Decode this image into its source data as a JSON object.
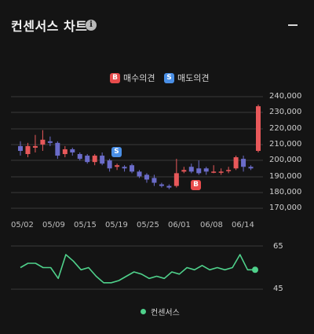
{
  "header": {
    "title": "컨센서스 차트",
    "info_icon": "info-icon",
    "collapse_icon": "minus-icon"
  },
  "legend": {
    "buy": {
      "badge": "B",
      "label": "매수의견"
    },
    "sell": {
      "badge": "S",
      "label": "매도의견"
    }
  },
  "colors": {
    "up": "#e8585a",
    "down": "#6b6cc9",
    "consensus": "#4fd18b",
    "buy": "#e84c4c",
    "sell": "#4a8fe6"
  },
  "price_axis": {
    "ticks": [
      "240,000",
      "230,000",
      "220,000",
      "210,000",
      "200,000",
      "190,000",
      "180,000",
      "170,000"
    ]
  },
  "date_axis": {
    "ticks": [
      "05/02",
      "05/09",
      "05/15",
      "05/19",
      "05/25",
      "06/01",
      "06/08",
      "06/14"
    ]
  },
  "consensus_axis": {
    "ticks": [
      "65",
      "45"
    ]
  },
  "legend_bottom": {
    "label": "컨센서스"
  },
  "markers": {
    "sell": "S",
    "buy": "B"
  },
  "chart_data": [
    {
      "type": "candlestick",
      "ylim": [
        170000,
        240000
      ],
      "candles": [
        {
          "o": 209000,
          "c": 206000,
          "h": 212000,
          "l": 203000
        },
        {
          "o": 204000,
          "c": 209000,
          "h": 211000,
          "l": 202000
        },
        {
          "o": 208000,
          "c": 209000,
          "h": 216000,
          "l": 205000
        },
        {
          "o": 210000,
          "c": 213000,
          "h": 219000,
          "l": 206000
        },
        {
          "o": 212000,
          "c": 211000,
          "h": 215000,
          "l": 209000
        },
        {
          "o": 211000,
          "c": 203000,
          "h": 212000,
          "l": 201000
        },
        {
          "o": 204000,
          "c": 207000,
          "h": 209000,
          "l": 202000
        },
        {
          "o": 207000,
          "c": 205000,
          "h": 208000,
          "l": 203000
        },
        {
          "o": 204000,
          "c": 201000,
          "h": 205000,
          "l": 200000
        },
        {
          "o": 203000,
          "c": 199000,
          "h": 204000,
          "l": 198000
        },
        {
          "o": 199000,
          "c": 203000,
          "h": 204000,
          "l": 197000
        },
        {
          "o": 203000,
          "c": 198000,
          "h": 205000,
          "l": 197000
        },
        {
          "o": 200000,
          "c": 195000,
          "h": 201000,
          "l": 193000
        },
        {
          "o": 196000,
          "c": 197000,
          "h": 198000,
          "l": 194000
        },
        {
          "o": 196000,
          "c": 195000,
          "h": 197000,
          "l": 193000
        },
        {
          "o": 197000,
          "c": 193000,
          "h": 198000,
          "l": 192000
        },
        {
          "o": 193000,
          "c": 190000,
          "h": 194000,
          "l": 189000
        },
        {
          "o": 191000,
          "c": 188000,
          "h": 192000,
          "l": 186000
        },
        {
          "o": 189000,
          "c": 186000,
          "h": 191000,
          "l": 184000
        },
        {
          "o": 185000,
          "c": 184000,
          "h": 186000,
          "l": 183000
        },
        {
          "o": 184000,
          "c": 183000,
          "h": 185000,
          "l": 182000
        },
        {
          "o": 184000,
          "c": 192000,
          "h": 201000,
          "l": 183000
        },
        {
          "o": 193000,
          "c": 194000,
          "h": 196000,
          "l": 192000
        },
        {
          "o": 196000,
          "c": 193000,
          "h": 198000,
          "l": 192000
        },
        {
          "o": 195000,
          "c": 192000,
          "h": 200000,
          "l": 191000
        },
        {
          "o": 195000,
          "c": 193000,
          "h": 196000,
          "l": 191000
        },
        {
          "o": 193000,
          "c": 193000,
          "h": 197000,
          "l": 192000
        },
        {
          "o": 193000,
          "c": 193000,
          "h": 195000,
          "l": 191000
        },
        {
          "o": 194000,
          "c": 194000,
          "h": 196000,
          "l": 192000
        },
        {
          "o": 195000,
          "c": 202000,
          "h": 203000,
          "l": 194000
        },
        {
          "o": 201000,
          "c": 196000,
          "h": 203000,
          "l": 193000
        },
        {
          "o": 196000,
          "c": 195000,
          "h": 197000,
          "l": 194000
        },
        {
          "o": 206000,
          "c": 234000,
          "h": 235000,
          "l": 205000
        }
      ]
    },
    {
      "type": "line",
      "series": [
        {
          "values": [
            55,
            57,
            57,
            55,
            55,
            50,
            61,
            58,
            54,
            55,
            51,
            48,
            48,
            49,
            51,
            53,
            52,
            50,
            51,
            50,
            53,
            52,
            55,
            54,
            56,
            54,
            55,
            54,
            55,
            61,
            54,
            54
          ]
        }
      ],
      "ylim": [
        45,
        65
      ]
    }
  ]
}
